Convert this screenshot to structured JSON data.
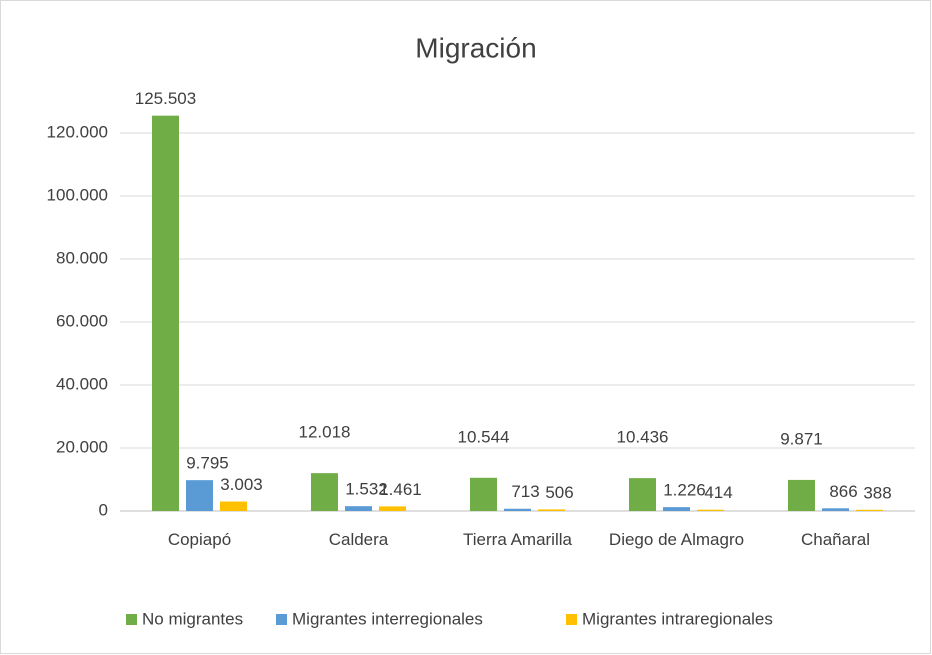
{
  "chart_data": {
    "type": "bar",
    "title": "Migración",
    "categories": [
      "Copiapó",
      "Caldera",
      "Tierra Amarilla",
      "Diego de Almagro",
      "Chañaral"
    ],
    "series": [
      {
        "name": "No migrantes",
        "color": "#70ad47",
        "values": [
          125503,
          12018,
          10544,
          10436,
          9871
        ],
        "value_labels": [
          "125.503",
          "12.018",
          "10.544",
          "10.436",
          "9.871"
        ]
      },
      {
        "name": "Migrantes interregionales",
        "color": "#5b9bd5",
        "values": [
          9795,
          1532,
          713,
          1226,
          866
        ],
        "value_labels": [
          "9.795",
          "1.532",
          "713",
          "1.226",
          "866"
        ]
      },
      {
        "name": "Migrantes intraregionales",
        "color": "#ffc000",
        "values": [
          3003,
          1461,
          506,
          414,
          388
        ],
        "value_labels": [
          "3.003",
          "1.461",
          "506",
          "414",
          "388"
        ]
      }
    ],
    "ylim": [
      0,
      130000
    ],
    "yticks": [
      0,
      {
        "value": 20000,
        "label": "20.000"
      },
      {
        "value": 40000,
        "label": "40.000"
      },
      {
        "value": 60000,
        "label": "60.000"
      },
      {
        "value": 80000,
        "label": "80.000"
      },
      {
        "value": 100000,
        "label": "100.000"
      },
      {
        "value": 120000,
        "label": "120.000"
      }
    ],
    "grid": true,
    "legend": "bottom"
  }
}
